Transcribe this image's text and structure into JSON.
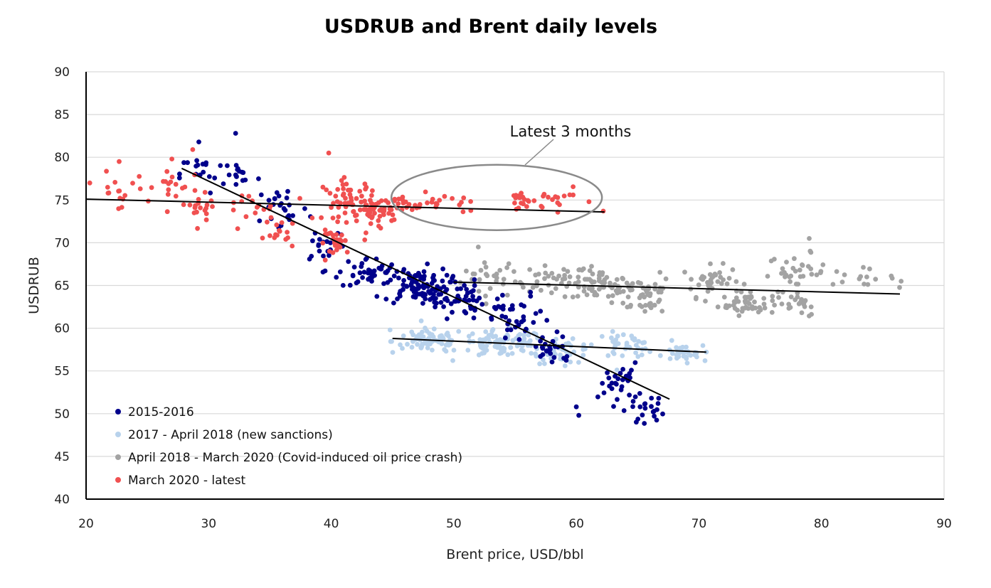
{
  "chart_data": {
    "type": "scatter",
    "title": "USDRUB and Brent daily levels",
    "xlabel": "Brent price, USD/bbl",
    "ylabel": "USDRUB",
    "xlim": [
      20,
      90
    ],
    "ylim": [
      40,
      90
    ],
    "x_ticks": [
      20,
      30,
      40,
      50,
      60,
      70,
      80,
      90
    ],
    "y_ticks": [
      40,
      45,
      50,
      55,
      60,
      65,
      70,
      75,
      80,
      85,
      90
    ],
    "grid": "horizontal",
    "legend_position": "bottom-left",
    "annotation": {
      "text": "Latest 3 months",
      "ellipse_center": [
        53.5,
        75.3
      ]
    },
    "series": [
      {
        "name": "2015-2016",
        "color": "#00008B",
        "clusters": [
          {
            "center": [
              29.5,
              78
            ],
            "spread": [
              1.5,
              2
            ],
            "n": 18
          },
          {
            "center": [
              32.5,
              78
            ],
            "spread": [
              1.5,
              2
            ],
            "n": 15
          },
          {
            "center": [
              36,
              74
            ],
            "spread": [
              1.8,
              2.5
            ],
            "n": 25
          },
          {
            "center": [
              39.5,
              70
            ],
            "spread": [
              1.5,
              2
            ],
            "n": 20
          },
          {
            "center": [
              43,
              66.5
            ],
            "spread": [
              2,
              1.5
            ],
            "n": 40
          },
          {
            "center": [
              47,
              65
            ],
            "spread": [
              2.2,
              1.8
            ],
            "n": 90
          },
          {
            "center": [
              50,
              63.5
            ],
            "spread": [
              2,
              1.8
            ],
            "n": 50
          },
          {
            "center": [
              55,
              61
            ],
            "spread": [
              2.5,
              2.5
            ],
            "n": 40
          },
          {
            "center": [
              58,
              57.5
            ],
            "spread": [
              1.5,
              1.5
            ],
            "n": 25
          },
          {
            "center": [
              63.5,
              53.5
            ],
            "spread": [
              1.3,
              2
            ],
            "n": 30
          },
          {
            "center": [
              66,
              50.5
            ],
            "spread": [
              1.2,
              1.3
            ],
            "n": 20
          }
        ],
        "points": [
          [
            29.2,
            81.8
          ],
          [
            32.2,
            82.8
          ],
          [
            60.2,
            49.8
          ],
          [
            60.0,
            50.8
          ]
        ],
        "trend": {
          "x": [
            27.8,
            67.6
          ],
          "y": [
            78.7,
            51.7
          ]
        }
      },
      {
        "name": "2017 - April 2018 (new sanctions)",
        "color": "#B8D2EC",
        "clusters": [
          {
            "center": [
              48,
              58.5
            ],
            "spread": [
              2.5,
              1.2
            ],
            "n": 70
          },
          {
            "center": [
              54,
              58.2
            ],
            "spread": [
              3,
              1.3
            ],
            "n": 90
          },
          {
            "center": [
              59,
              57.2
            ],
            "spread": [
              2,
              1.1
            ],
            "n": 40
          },
          {
            "center": [
              64,
              58
            ],
            "spread": [
              2,
              1.2
            ],
            "n": 40
          },
          {
            "center": [
              68.5,
              57
            ],
            "spread": [
              1.5,
              0.8
            ],
            "n": 30
          }
        ],
        "points": [
          [
            44.8,
            59.8
          ],
          [
            70.5,
            56.2
          ]
        ],
        "trend": {
          "x": [
            45,
            70.6
          ],
          "y": [
            58.8,
            57.2
          ]
        }
      },
      {
        "name": "April 2018 - March 2020 (Covid-induced oil price crash)",
        "color": "#A3A3A3",
        "clusters": [
          {
            "center": [
              53,
              66
            ],
            "spread": [
              2,
              2
            ],
            "n": 25
          },
          {
            "center": [
              58,
              65.5
            ],
            "spread": [
              2.5,
              1.5
            ],
            "n": 40
          },
          {
            "center": [
              62,
              65
            ],
            "spread": [
              2,
              1.5
            ],
            "n": 55
          },
          {
            "center": [
              65.5,
              64
            ],
            "spread": [
              2,
              2
            ],
            "n": 45
          },
          {
            "center": [
              71,
              65.5
            ],
            "spread": [
              2,
              1.5
            ],
            "n": 40
          },
          {
            "center": [
              74,
              63
            ],
            "spread": [
              2,
              1.2
            ],
            "n": 50
          },
          {
            "center": [
              78,
              66.5
            ],
            "spread": [
              2,
              1.8
            ],
            "n": 35
          },
          {
            "center": [
              78.5,
              62.5
            ],
            "spread": [
              1.2,
              1
            ],
            "n": 15
          },
          {
            "center": [
              83,
              66
            ],
            "spread": [
              2.5,
              0.8
            ],
            "n": 15
          }
        ],
        "points": [
          [
            79.0,
            70.5
          ],
          [
            86.5,
            65.5
          ],
          [
            52.0,
            69.5
          ],
          [
            67.0,
            62.0
          ]
        ],
        "trend": {
          "x": [
            50,
            86.4
          ],
          "y": [
            65.4,
            64.0
          ]
        }
      },
      {
        "name": "March 2020 - latest",
        "color": "#F05050",
        "clusters": [
          {
            "center": [
              22.5,
              76
            ],
            "spread": [
              2,
              1.8
            ],
            "n": 15
          },
          {
            "center": [
              26.5,
              76.5
            ],
            "spread": [
              1.5,
              2
            ],
            "n": 15
          },
          {
            "center": [
              29.5,
              74.5
            ],
            "spread": [
              1.5,
              1.5
            ],
            "n": 20
          },
          {
            "center": [
              33,
              74
            ],
            "spread": [
              2,
              1.5
            ],
            "n": 15
          },
          {
            "center": [
              36,
              71
            ],
            "spread": [
              1.2,
              1.5
            ],
            "n": 15
          },
          {
            "center": [
              40.5,
              70
            ],
            "spread": [
              1.2,
              1.2
            ],
            "n": 25
          },
          {
            "center": [
              41.5,
              75
            ],
            "spread": [
              1.8,
              2
            ],
            "n": 55
          },
          {
            "center": [
              43.5,
              73.5
            ],
            "spread": [
              1,
              1.8
            ],
            "n": 35
          },
          {
            "center": [
              45,
              74.3
            ],
            "spread": [
              1.2,
              1.2
            ],
            "n": 25
          },
          {
            "center": [
              49,
              74.6
            ],
            "spread": [
              2,
              1
            ],
            "n": 20
          },
          {
            "center": [
              55.5,
              74.8
            ],
            "spread": [
              1,
              1.2
            ],
            "n": 18
          },
          {
            "center": [
              58.5,
              75
            ],
            "spread": [
              1.8,
              1
            ],
            "n": 15
          }
        ],
        "points": [
          [
            39.8,
            80.5
          ],
          [
            20.3,
            77.0
          ],
          [
            22.7,
            79.5
          ],
          [
            27.0,
            79.8
          ],
          [
            28.7,
            80.9
          ],
          [
            62.2,
            73.7
          ]
        ],
        "trend": {
          "x": [
            20,
            62.3
          ],
          "y": [
            75.1,
            73.6
          ]
        }
      }
    ]
  }
}
